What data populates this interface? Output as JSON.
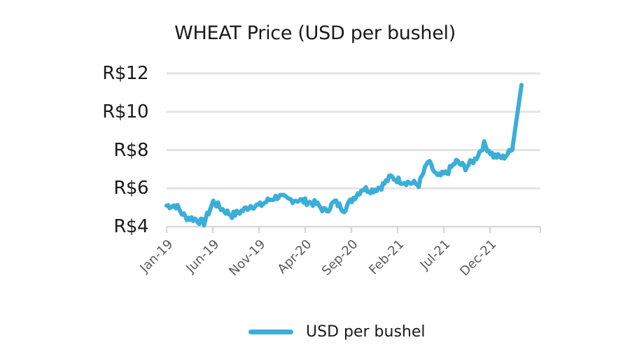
{
  "chart_data": {
    "type": "line",
    "title": "WHEAT Price (USD per bushel)",
    "xlabel": "",
    "ylabel": "",
    "ylim": [
      4,
      12
    ],
    "yticks": [
      "R$4",
      "R$6",
      "R$8",
      "R$10",
      "R$12"
    ],
    "ytick_values": [
      4,
      6,
      8,
      10,
      12
    ],
    "xticks": [
      "Jan-19",
      "Jun-19",
      "Nov-19",
      "Apr-20",
      "Sep-20",
      "Feb-21",
      "Jul-21",
      "Dec-21"
    ],
    "grid": true,
    "legend_position": "bottom",
    "series": [
      {
        "name": "USD per bushel",
        "color": "#3aaed8",
        "x": [
          "Jan-19",
          "Feb-19",
          "Mar-19",
          "Apr-19",
          "May-19",
          "Jun-19",
          "Jul-19",
          "Aug-19",
          "Sep-19",
          "Oct-19",
          "Nov-19",
          "Dec-19",
          "Jan-20",
          "Feb-20",
          "Mar-20",
          "Apr-20",
          "May-20",
          "Jun-20",
          "Jul-20",
          "Aug-20",
          "Sep-20",
          "Oct-20",
          "Nov-20",
          "Dec-20",
          "Jan-21",
          "Feb-21",
          "Mar-21",
          "Apr-21",
          "May-21",
          "Jun-21",
          "Jul-21",
          "Aug-21",
          "Sep-21",
          "Oct-21",
          "Nov-21",
          "Dec-21",
          "Jan-22",
          "Feb-22",
          "Mar-22"
        ],
        "values": [
          5.1,
          5.1,
          4.5,
          4.4,
          4.2,
          5.3,
          4.9,
          4.6,
          4.8,
          5.1,
          5.1,
          5.4,
          5.6,
          5.4,
          5.4,
          5.3,
          5.2,
          4.8,
          5.3,
          4.9,
          5.5,
          6.0,
          5.9,
          6.1,
          6.6,
          6.4,
          6.3,
          6.2,
          7.4,
          6.6,
          6.8,
          7.4,
          7.1,
          7.5,
          8.3,
          7.7,
          7.6,
          8.0,
          11.4
        ]
      }
    ]
  },
  "legend": {
    "label": "USD per bushel"
  }
}
